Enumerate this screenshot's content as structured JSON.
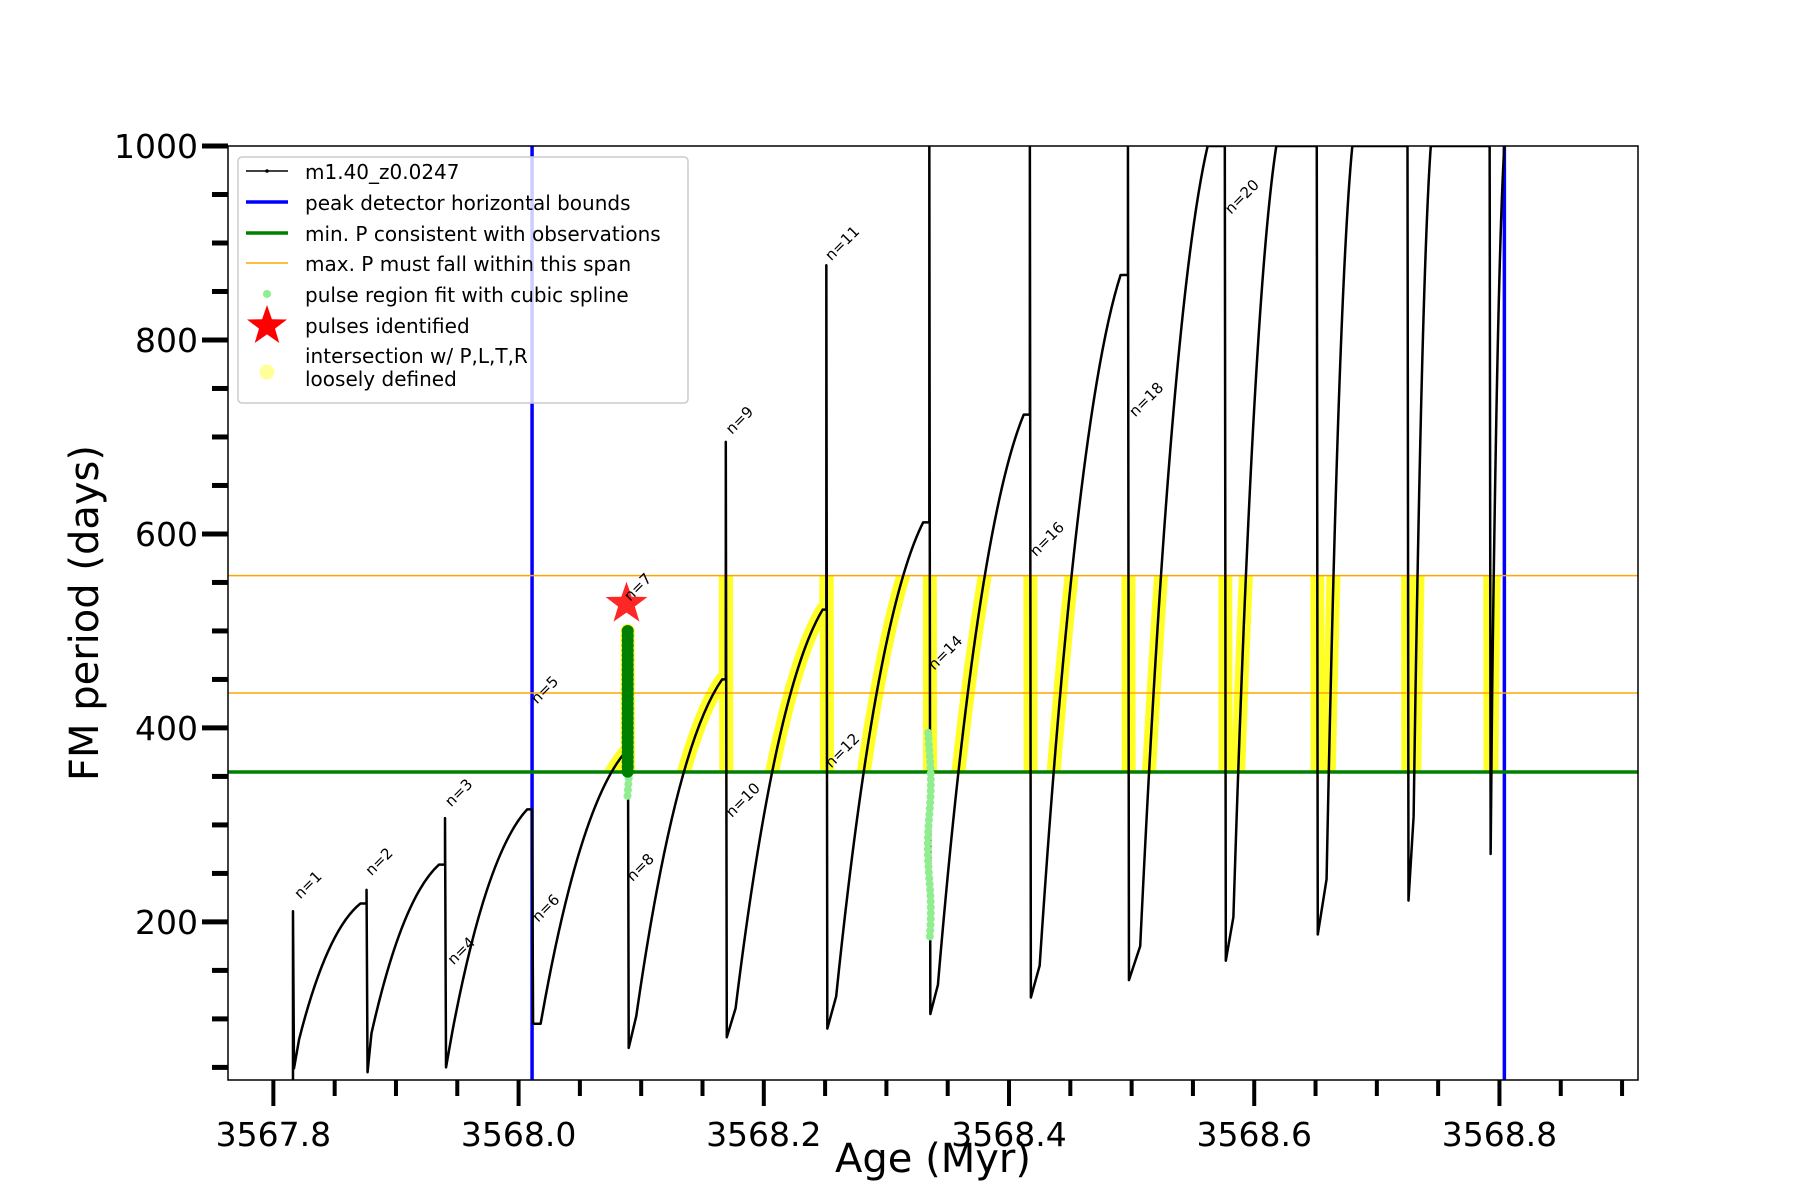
{
  "chart_data": {
    "type": "line",
    "title": "",
    "xlabel": "Age (Myr)",
    "ylabel": "FM period (days)",
    "xlim": [
      3567.763,
      3568.913
    ],
    "ylim": [
      37,
      1000
    ],
    "xticks": [
      3567.8,
      3568.0,
      3568.2,
      3568.4,
      3568.6,
      3568.8
    ],
    "xtick_labels": [
      "3567.8",
      "3568.0",
      "3568.2",
      "3568.4",
      "3568.6",
      "3568.8"
    ],
    "yticks": [
      200,
      400,
      600,
      800,
      1000
    ],
    "ytick_labels": [
      "200",
      "400",
      "600",
      "800",
      "1000"
    ],
    "legend_position": "top-left",
    "legend": [
      "m1.40_z0.0247",
      "peak detector horizontal bounds",
      "min. P consistent with observations",
      "max. P must fall within this span",
      "pulse region fit with cubic spline",
      "pulses identified",
      "intersection w/ P,L,T,R",
      "loosely defined"
    ],
    "colors": {
      "track": "#000000",
      "bounds": "#0000ff",
      "minP": "#008000",
      "maxP": "#ffa500",
      "spline": "#90ee90",
      "spline_dark": "#008000",
      "star": "#ff0000",
      "intersection": "#ffff00"
    },
    "vertical_bounds": [
      3568.011,
      3568.804
    ],
    "min_period": 354.5,
    "max_period_span": [
      436,
      557
    ],
    "cycles": [
      {
        "spike_age": 3567.816,
        "spike_peak": 211,
        "spike_low": 49,
        "min_age": 3567.821,
        "min_P": 79,
        "peak_age": 3567.871,
        "peak_P": 219
      },
      {
        "spike_age": 3567.876,
        "spike_peak": 233,
        "spike_low": 45,
        "min_age": 3567.88,
        "min_P": 85,
        "peak_age": 3567.935,
        "peak_P": 259
      },
      {
        "spike_age": 3567.94,
        "spike_peak": 307,
        "spike_low": 50,
        "min_age": 3567.946,
        "min_P": 87,
        "peak_age": 3568.007,
        "peak_P": 316
      },
      {
        "spike_age": 3568.011,
        "spike_peak": 316,
        "spike_low": 95,
        "min_age": 3568.018,
        "min_P": 95,
        "peak_age": 3568.087,
        "peak_P": 375
      },
      {
        "spike_age": 3568.089,
        "spike_peak": 500,
        "spike_low": 70,
        "min_age": 3568.096,
        "min_P": 103,
        "peak_age": 3568.166,
        "peak_P": 450
      },
      {
        "spike_age": 3568.169,
        "spike_peak": 695,
        "spike_low": 81,
        "min_age": 3568.177,
        "min_P": 111,
        "peak_age": 3568.248,
        "peak_P": 522
      },
      {
        "spike_age": 3568.251,
        "spike_peak": 877,
        "spike_low": 90,
        "min_age": 3568.259,
        "min_P": 123,
        "peak_age": 3568.33,
        "peak_P": 612
      },
      {
        "spike_age": 3568.335,
        "spike_peak": 1000,
        "spike_low": 105,
        "min_age": 3568.342,
        "min_P": 135,
        "peak_age": 3568.412,
        "peak_P": 723
      },
      {
        "spike_age": 3568.417,
        "spike_peak": 1000,
        "spike_low": 122,
        "min_age": 3568.425,
        "min_P": 155,
        "peak_age": 3568.491,
        "peak_P": 867
      },
      {
        "spike_age": 3568.497,
        "spike_peak": 1000,
        "spike_low": 140,
        "min_age": 3568.507,
        "min_P": 175,
        "peak_age": 3568.562,
        "peak_P": 1000
      },
      {
        "spike_age": 3568.576,
        "spike_peak": 1000,
        "spike_low": 160,
        "min_age": 3568.583,
        "min_P": 205,
        "peak_age": 3568.618,
        "peak_P": 1000
      },
      {
        "spike_age": 3568.651,
        "spike_peak": 1000,
        "spike_low": 187,
        "min_age": 3568.659,
        "min_P": 244,
        "peak_age": 3568.68,
        "peak_P": 1000
      },
      {
        "spike_age": 3568.725,
        "spike_peak": 1000,
        "spike_low": 222,
        "min_age": 3568.73,
        "min_P": 309,
        "peak_age": 3568.744,
        "peak_P": 1000
      },
      {
        "spike_age": 3568.792,
        "spike_peak": 1000,
        "spike_low": 270,
        "min_age": 3568.794,
        "min_P": 430,
        "peak_age": 3568.804,
        "peak_P": 1000
      }
    ],
    "spline_points_dark": {
      "age": 3568.089,
      "P_range": [
        355,
        500
      ]
    },
    "spline_points_light": [
      {
        "age": 3568.089,
        "P_range": [
          330,
          370
        ]
      },
      {
        "age": 3568.335,
        "P_range": [
          185,
          400
        ]
      }
    ],
    "pulse_identified": {
      "age": 3568.088,
      "P": 528
    },
    "annotations": [
      {
        "text": "n=1",
        "age": 3567.822,
        "P": 223
      },
      {
        "text": "n=2",
        "age": 3567.88,
        "P": 247
      },
      {
        "text": "n=3",
        "age": 3567.945,
        "P": 318
      },
      {
        "text": "n=4",
        "age": 3567.947,
        "P": 155
      },
      {
        "text": "n=5",
        "age": 3568.015,
        "P": 424
      },
      {
        "text": "n=6",
        "age": 3568.016,
        "P": 199
      },
      {
        "text": "n=7",
        "age": 3568.091,
        "P": 530
      },
      {
        "text": "n=8",
        "age": 3568.093,
        "P": 241
      },
      {
        "text": "n=9",
        "age": 3568.174,
        "P": 702
      },
      {
        "text": "n=10",
        "age": 3568.174,
        "P": 307
      },
      {
        "text": "n=11",
        "age": 3568.255,
        "P": 881
      },
      {
        "text": "n=12",
        "age": 3568.255,
        "P": 358
      },
      {
        "text": "n=14",
        "age": 3568.339,
        "P": 459
      },
      {
        "text": "n=16",
        "age": 3568.422,
        "P": 576
      },
      {
        "text": "n=18",
        "age": 3568.503,
        "P": 720
      },
      {
        "text": "n=20",
        "age": 3568.581,
        "P": 929
      }
    ]
  }
}
